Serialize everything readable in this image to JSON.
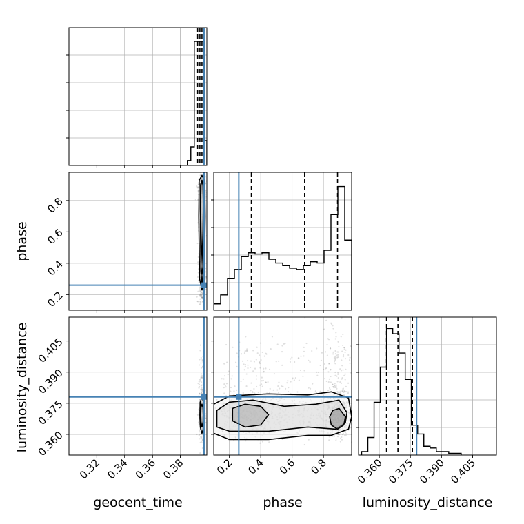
{
  "colors": {
    "truth": "#4682b4",
    "grid": "#b0b0b0",
    "hist": "#000000",
    "quantile": "#000000"
  },
  "chart_data": {
    "type": "corner",
    "parameters": [
      "geocent_time",
      "phase",
      "luminosity_distance"
    ],
    "truths": {
      "geocent_time": 0.397,
      "phase": 0.26,
      "luminosity_distance": 0.378
    },
    "ranges": {
      "geocent_time": [
        0.3,
        0.399
      ],
      "phase": [
        0.1,
        0.98
      ],
      "luminosity_distance": [
        0.35,
        0.4165
      ]
    },
    "ticks": {
      "geocent_time": [
        "0.32",
        "0.34",
        "0.36",
        "0.38"
      ],
      "phase": [
        "0.2",
        "0.4",
        "0.6",
        "0.8"
      ],
      "luminosity_distance": [
        "0.360",
        "0.375",
        "0.390",
        "0.405"
      ]
    },
    "quantiles": {
      "geocent_time": [
        0.3924,
        0.394,
        0.3955
      ],
      "phase": [
        0.34,
        0.68,
        0.89
      ],
      "luminosity_distance": [
        0.3635,
        0.369,
        0.376
      ]
    },
    "histograms": {
      "geocent_time": {
        "edges": [
          0.3,
          0.385,
          0.3875,
          0.39,
          0.3925,
          0.395,
          0.3975,
          0.399
        ],
        "counts": [
          0,
          4,
          15,
          100,
          100,
          100,
          20
        ]
      },
      "phase": {
        "edges": [
          0.1,
          0.144,
          0.188,
          0.232,
          0.276,
          0.32,
          0.364,
          0.408,
          0.452,
          0.496,
          0.54,
          0.584,
          0.628,
          0.672,
          0.716,
          0.76,
          0.804,
          0.848,
          0.892,
          0.936,
          0.98
        ],
        "counts": [
          5,
          12,
          25,
          32,
          42,
          45,
          44,
          45,
          40,
          37,
          35,
          33,
          32,
          35,
          38,
          37,
          47,
          75,
          97,
          55
        ]
      },
      "luminosity_distance": {
        "edges": [
          0.3515,
          0.3545,
          0.3575,
          0.3605,
          0.3635,
          0.3665,
          0.3695,
          0.3725,
          0.3755,
          0.3785,
          0.3815,
          0.3845,
          0.3875,
          0.3905,
          0.3935,
          0.3965,
          0.3995
        ],
        "counts": [
          2,
          10,
          30,
          50,
          72,
          69,
          58,
          43,
          17,
          12,
          5,
          4,
          2,
          2,
          1,
          1
        ]
      }
    },
    "contours_2d": [
      {
        "x": "geocent_time",
        "y": "phase",
        "levels": [
          [
            [
              0.3955,
              0.23
            ],
            [
              0.3972,
              0.3
            ],
            [
              0.3975,
              0.5
            ],
            [
              0.3978,
              0.7
            ],
            [
              0.3975,
              0.93
            ],
            [
              0.3955,
              0.96
            ],
            [
              0.3935,
              0.93
            ],
            [
              0.3932,
              0.7
            ],
            [
              0.3935,
              0.5
            ],
            [
              0.3938,
              0.3
            ]
          ],
          [
            [
              0.3955,
              0.27
            ],
            [
              0.3965,
              0.35
            ],
            [
              0.3967,
              0.55
            ],
            [
              0.3967,
              0.75
            ],
            [
              0.3965,
              0.9
            ],
            [
              0.3955,
              0.93
            ],
            [
              0.3945,
              0.9
            ],
            [
              0.3943,
              0.75
            ],
            [
              0.3945,
              0.55
            ],
            [
              0.3947,
              0.35
            ]
          ],
          [
            [
              0.3955,
              0.33
            ],
            [
              0.3962,
              0.38
            ],
            [
              0.3958,
              0.48
            ],
            [
              0.3962,
              0.6
            ],
            [
              0.3965,
              0.78
            ],
            [
              0.3962,
              0.9
            ],
            [
              0.3955,
              0.92
            ],
            [
              0.3948,
              0.9
            ],
            [
              0.3945,
              0.78
            ],
            [
              0.3948,
              0.6
            ],
            [
              0.3952,
              0.48
            ],
            [
              0.3948,
              0.38
            ]
          ]
        ]
      },
      {
        "x": "phase",
        "y": "luminosity_distance",
        "levels": [
          [
            [
              0.1,
              0.3605
            ],
            [
              0.2,
              0.3575
            ],
            [
              0.45,
              0.3575
            ],
            [
              0.7,
              0.3595
            ],
            [
              0.85,
              0.3595
            ],
            [
              0.96,
              0.3625
            ],
            [
              0.98,
              0.3685
            ],
            [
              0.96,
              0.3775
            ],
            [
              0.85,
              0.3805
            ],
            [
              0.7,
              0.379
            ],
            [
              0.45,
              0.3795
            ],
            [
              0.2,
              0.3785
            ],
            [
              0.1,
              0.3745
            ],
            [
              0.08,
              0.3685
            ]
          ],
          [
            [
              0.12,
              0.3635
            ],
            [
              0.2,
              0.3615
            ],
            [
              0.45,
              0.3615
            ],
            [
              0.7,
              0.3635
            ],
            [
              0.88,
              0.3625
            ],
            [
              0.94,
              0.3655
            ],
            [
              0.95,
              0.3705
            ],
            [
              0.9,
              0.3765
            ],
            [
              0.75,
              0.3745
            ],
            [
              0.55,
              0.3735
            ],
            [
              0.35,
              0.3765
            ],
            [
              0.2,
              0.3755
            ],
            [
              0.12,
              0.3715
            ]
          ],
          [
            [
              0.22,
              0.3665
            ],
            [
              0.3,
              0.3635
            ],
            [
              0.4,
              0.3645
            ],
            [
              0.45,
              0.3695
            ],
            [
              0.4,
              0.3735
            ],
            [
              0.3,
              0.3745
            ],
            [
              0.22,
              0.3725
            ]
          ],
          [
            [
              0.85,
              0.3645
            ],
            [
              0.89,
              0.3625
            ],
            [
              0.93,
              0.3645
            ],
            [
              0.94,
              0.3685
            ],
            [
              0.9,
              0.3725
            ],
            [
              0.86,
              0.3715
            ],
            [
              0.84,
              0.3685
            ]
          ]
        ]
      },
      {
        "x": "geocent_time",
        "y": "luminosity_distance",
        "levels": [
          [
            [
              0.3955,
              0.3605
            ],
            [
              0.3968,
              0.3635
            ],
            [
              0.397,
              0.369
            ],
            [
              0.3966,
              0.3755
            ],
            [
              0.3955,
              0.378
            ],
            [
              0.3942,
              0.3755
            ],
            [
              0.394,
              0.369
            ],
            [
              0.3943,
              0.3635
            ]
          ],
          [
            [
              0.3955,
              0.3635
            ],
            [
              0.3963,
              0.366
            ],
            [
              0.3964,
              0.3695
            ],
            [
              0.3962,
              0.373
            ],
            [
              0.3955,
              0.3745
            ],
            [
              0.3948,
              0.373
            ],
            [
              0.3946,
              0.3695
            ],
            [
              0.3948,
              0.366
            ]
          ]
        ]
      }
    ],
    "title": "",
    "xlabel": "",
    "ylabel": ""
  }
}
